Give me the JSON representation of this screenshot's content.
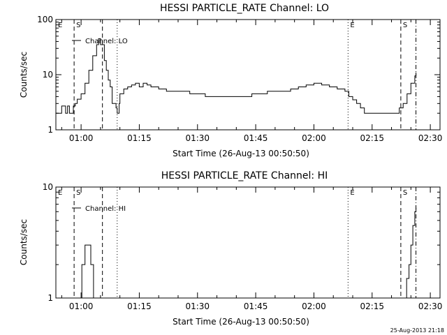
{
  "chart_data": [
    {
      "type": "line",
      "title": "HESSI PARTICLE_RATE Channel: LO",
      "xlabel": "Start Time (26-Aug-13 00:50:50)",
      "ylabel": "Counts/sec",
      "yscale": "log",
      "ylim": [
        1,
        100
      ],
      "ytick_labels": [
        "1",
        "10",
        "100"
      ],
      "xlim_minutes": [
        53.5,
        152.5
      ],
      "xtick_labels": [
        "01:00",
        "01:15",
        "01:30",
        "01:45",
        "02:00",
        "02:15",
        "02:30"
      ],
      "grid": false,
      "legend": {
        "label": "Channel: LO",
        "position": "top-left"
      },
      "markers": [
        {
          "label": "E",
          "minute": 53.5,
          "style": "none"
        },
        {
          "label": "S",
          "minute": 58.2,
          "style": "dashed"
        },
        {
          "label": "",
          "minute": 65.5,
          "style": "dashed"
        },
        {
          "label": "",
          "minute": 69.3,
          "style": "dotted"
        },
        {
          "label": "E",
          "minute": 128.8,
          "style": "dotted"
        },
        {
          "label": "S",
          "minute": 142.4,
          "style": "dashed"
        },
        {
          "label": "",
          "minute": 146.3,
          "style": "dash-dot"
        }
      ],
      "series": [
        {
          "name": "Channel: LO",
          "segments": [
            [
              [
                53.5,
                2
              ],
              [
                54.5,
                2
              ],
              [
                55,
                2.7
              ],
              [
                56,
                2
              ],
              [
                56.5,
                2.7
              ],
              [
                57,
                2
              ],
              [
                58,
                2.7
              ],
              [
                58.5,
                3
              ],
              [
                59,
                3.6
              ],
              [
                60,
                4.5
              ],
              [
                61,
                7
              ],
              [
                62,
                12
              ],
              [
                63,
                22
              ],
              [
                64,
                35
              ],
              [
                64.5,
                45
              ],
              [
                65,
                35
              ],
              [
                66,
                18
              ],
              [
                66.5,
                12
              ],
              [
                67,
                8
              ],
              [
                67.5,
                6
              ],
              [
                68,
                3
              ],
              [
                69,
                2.5
              ],
              [
                69.3,
                2
              ],
              [
                69.8,
                3
              ],
              [
                70,
                4.5
              ],
              [
                71,
                5.5
              ],
              [
                72,
                6
              ],
              [
                73,
                6.5
              ],
              [
                74,
                7
              ],
              [
                75,
                6
              ],
              [
                76,
                7
              ],
              [
                77,
                6.5
              ],
              [
                78,
                6
              ],
              [
                80,
                5.5
              ],
              [
                82,
                5
              ],
              [
                85,
                5
              ],
              [
                88,
                4.5
              ],
              [
                90,
                4.5
              ],
              [
                92,
                4
              ],
              [
                95,
                4
              ],
              [
                98,
                4
              ],
              [
                100,
                4
              ],
              [
                102,
                4
              ],
              [
                104,
                4.5
              ],
              [
                106,
                4.5
              ],
              [
                108,
                5
              ],
              [
                110,
                5
              ],
              [
                112,
                5
              ],
              [
                114,
                5.5
              ],
              [
                116,
                6
              ],
              [
                118,
                6.5
              ],
              [
                120,
                7
              ],
              [
                122,
                6.5
              ],
              [
                124,
                6
              ],
              [
                126,
                5.5
              ],
              [
                128,
                5
              ],
              [
                129,
                4
              ],
              [
                130,
                3.5
              ],
              [
                131,
                3
              ],
              [
                132,
                2.5
              ],
              [
                133,
                2
              ],
              [
                135,
                2
              ],
              [
                137,
                2
              ],
              [
                139,
                2
              ],
              [
                141,
                2
              ],
              [
                142,
                2.5
              ],
              [
                143,
                3
              ],
              [
                144,
                4.5
              ],
              [
                145,
                7
              ],
              [
                146,
                9.5
              ],
              [
                146.3,
                11
              ]
            ]
          ]
        }
      ]
    },
    {
      "type": "line",
      "title": "HESSI PARTICLE_RATE Channel: HI",
      "xlabel": "Start Time (26-Aug-13 00:50:50)",
      "ylabel": "Counts/sec",
      "yscale": "log",
      "ylim": [
        1,
        10
      ],
      "ytick_labels": [
        "1",
        "10"
      ],
      "xlim_minutes": [
        53.5,
        152.5
      ],
      "xtick_labels": [
        "01:00",
        "01:15",
        "01:30",
        "01:45",
        "02:00",
        "02:15",
        "02:30"
      ],
      "grid": false,
      "legend": {
        "label": "Channel: HI",
        "position": "top-left"
      },
      "markers": [
        {
          "label": "E",
          "minute": 53.5,
          "style": "none"
        },
        {
          "label": "S",
          "minute": 58.2,
          "style": "dashed"
        },
        {
          "label": "",
          "minute": 65.5,
          "style": "dashed"
        },
        {
          "label": "",
          "minute": 69.3,
          "style": "dotted"
        },
        {
          "label": "E",
          "minute": 128.8,
          "style": "dotted"
        },
        {
          "label": "S",
          "minute": 142.4,
          "style": "dashed"
        },
        {
          "label": "",
          "minute": 146.3,
          "style": "dash-dot"
        }
      ],
      "series": [
        {
          "name": "Channel: HI",
          "segments": [
            [
              [
                59.8,
                1
              ],
              [
                60.2,
                2
              ],
              [
                60.8,
                2
              ],
              [
                61,
                3
              ],
              [
                62.2,
                3
              ],
              [
                62.5,
                2
              ],
              [
                63,
                2
              ],
              [
                63.2,
                1
              ]
            ],
            [
              [
                143.5,
                1
              ],
              [
                143.9,
                1.5
              ],
              [
                144.5,
                2
              ],
              [
                145,
                3
              ],
              [
                145.5,
                4.5
              ],
              [
                146,
                6
              ],
              [
                146.3,
                6.5
              ]
            ]
          ]
        }
      ]
    }
  ],
  "footer": {
    "timestamp": "25-Aug-2013 21:18"
  }
}
